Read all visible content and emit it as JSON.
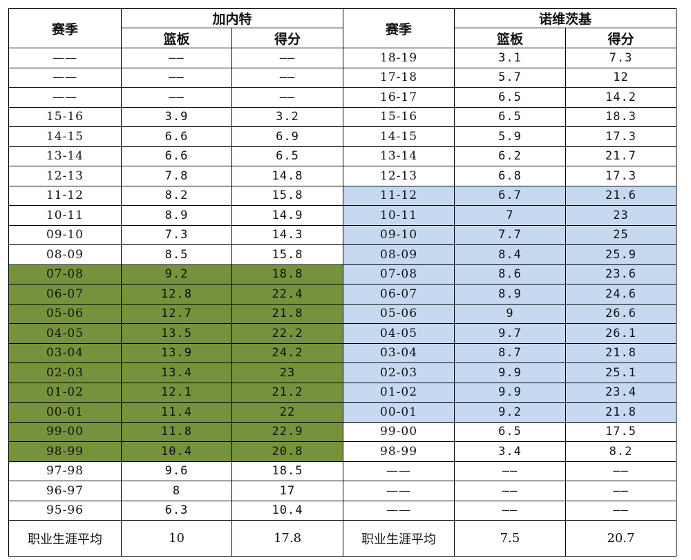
{
  "header": {
    "season_label": "赛季",
    "left_player": "加内特",
    "right_player": "诺维茨基",
    "rebounds_label": "篮板",
    "points_label": "得分"
  },
  "rows": [
    {
      "ls": "——",
      "lr": "——",
      "lp": "——",
      "lh": "",
      "rs": "18-19",
      "rr": "3.1",
      "rp": "7.3",
      "rh": ""
    },
    {
      "ls": "——",
      "lr": "——",
      "lp": "——",
      "lh": "",
      "rs": "17-18",
      "rr": "5.7",
      "rp": "12",
      "rh": ""
    },
    {
      "ls": "——",
      "lr": "——",
      "lp": "——",
      "lh": "",
      "rs": "16-17",
      "rr": "6.5",
      "rp": "14.2",
      "rh": ""
    },
    {
      "ls": "15-16",
      "lr": "3.9",
      "lp": "3.2",
      "lh": "",
      "rs": "15-16",
      "rr": "6.5",
      "rp": "18.3",
      "rh": ""
    },
    {
      "ls": "14-15",
      "lr": "6.6",
      "lp": "6.9",
      "lh": "",
      "rs": "14-15",
      "rr": "5.9",
      "rp": "17.3",
      "rh": ""
    },
    {
      "ls": "13-14",
      "lr": "6.6",
      "lp": "6.5",
      "lh": "",
      "rs": "13-14",
      "rr": "6.2",
      "rp": "21.7",
      "rh": ""
    },
    {
      "ls": "12-13",
      "lr": "7.8",
      "lp": "14.8",
      "lh": "",
      "rs": "12-13",
      "rr": "6.8",
      "rp": "17.3",
      "rh": ""
    },
    {
      "ls": "11-12",
      "lr": "8.2",
      "lp": "15.8",
      "lh": "",
      "rs": "11-12",
      "rr": "6.7",
      "rp": "21.6",
      "rh": "b"
    },
    {
      "ls": "10-11",
      "lr": "8.9",
      "lp": "14.9",
      "lh": "",
      "rs": "10-11",
      "rr": "7",
      "rp": "23",
      "rh": "b"
    },
    {
      "ls": "09-10",
      "lr": "7.3",
      "lp": "14.3",
      "lh": "",
      "rs": "09-10",
      "rr": "7.7",
      "rp": "25",
      "rh": "b"
    },
    {
      "ls": "08-09",
      "lr": "8.5",
      "lp": "15.8",
      "lh": "",
      "rs": "08-09",
      "rr": "8.4",
      "rp": "25.9",
      "rh": "b"
    },
    {
      "ls": "07-08",
      "lr": "9.2",
      "lp": "18.8",
      "lh": "g",
      "rs": "07-08",
      "rr": "8.6",
      "rp": "23.6",
      "rh": "b"
    },
    {
      "ls": "06-07",
      "lr": "12.8",
      "lp": "22.4",
      "lh": "g",
      "rs": "06-07",
      "rr": "8.9",
      "rp": "24.6",
      "rh": "b"
    },
    {
      "ls": "05-06",
      "lr": "12.7",
      "lp": "21.8",
      "lh": "g",
      "rs": "05-06",
      "rr": "9",
      "rp": "26.6",
      "rh": "b"
    },
    {
      "ls": "04-05",
      "lr": "13.5",
      "lp": "22.2",
      "lh": "g",
      "rs": "04-05",
      "rr": "9.7",
      "rp": "26.1",
      "rh": "b"
    },
    {
      "ls": "03-04",
      "lr": "13.9",
      "lp": "24.2",
      "lh": "g",
      "rs": "03-04",
      "rr": "8.7",
      "rp": "21.8",
      "rh": "b"
    },
    {
      "ls": "02-03",
      "lr": "13.4",
      "lp": "23",
      "lh": "g",
      "rs": "02-03",
      "rr": "9.9",
      "rp": "25.1",
      "rh": "b"
    },
    {
      "ls": "01-02",
      "lr": "12.1",
      "lp": "21.2",
      "lh": "g",
      "rs": "01-02",
      "rr": "9.9",
      "rp": "23.4",
      "rh": "b"
    },
    {
      "ls": "00-01",
      "lr": "11.4",
      "lp": "22",
      "lh": "g",
      "rs": "00-01",
      "rr": "9.2",
      "rp": "21.8",
      "rh": "b"
    },
    {
      "ls": "99-00",
      "lr": "11.8",
      "lp": "22.9",
      "lh": "g",
      "rs": "99-00",
      "rr": "6.5",
      "rp": "17.5",
      "rh": ""
    },
    {
      "ls": "98-99",
      "lr": "10.4",
      "lp": "20.8",
      "lh": "g",
      "rs": "98-99",
      "rr": "3.4",
      "rp": "8.2",
      "rh": ""
    },
    {
      "ls": "97-98",
      "lr": "9.6",
      "lp": "18.5",
      "lh": "",
      "rs": "——",
      "rr": "——",
      "rp": "——",
      "rh": ""
    },
    {
      "ls": "96-97",
      "lr": "8",
      "lp": "17",
      "lh": "",
      "rs": "——",
      "rr": "——",
      "rp": "——",
      "rh": ""
    },
    {
      "ls": "95-96",
      "lr": "6.3",
      "lp": "10.4",
      "lh": "",
      "rs": "——",
      "rr": "——",
      "rp": "——",
      "rh": ""
    }
  ],
  "career": {
    "label": "职业生涯平均",
    "left_rebounds": "10",
    "left_points": "17.8",
    "right_rebounds": "7.5",
    "right_points": "20.7"
  },
  "colors": {
    "left_highlight": "#76923c",
    "right_highlight": "#c6d9f1"
  }
}
